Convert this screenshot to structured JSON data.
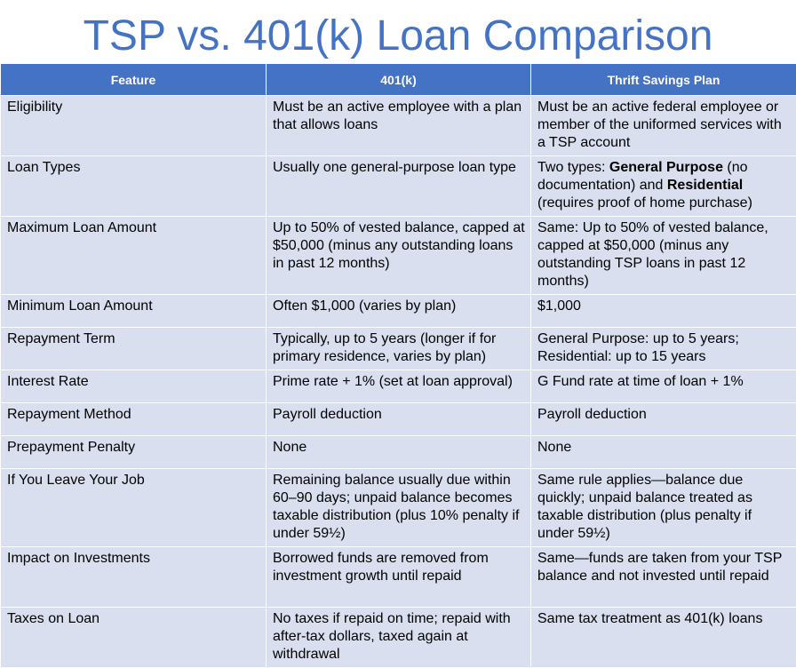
{
  "title": "TSP vs. 401(k) Loan Comparison",
  "columns": [
    "Feature",
    "401(k)",
    "Thrift Savings Plan"
  ],
  "rows": [
    {
      "feature": "Eligibility",
      "k401": "Must be an active employee with a plan that allows loans",
      "tsp": "Must be an active federal employee or member of the uniformed services with a TSP account"
    },
    {
      "feature": "Loan Types",
      "k401": "Usually one general-purpose loan type",
      "tsp_parts": [
        "Two types: ",
        "General Purpose",
        " (no documentation) and ",
        "Residential",
        " (requires proof of home purchase)"
      ]
    },
    {
      "feature": "Maximum Loan Amount",
      "k401": "Up to 50% of vested balance, capped at $50,000 (minus any outstanding loans in past 12 months)",
      "tsp": "Same: Up to 50% of vested balance, capped at $50,000 (minus any outstanding TSP loans in past 12 months)"
    },
    {
      "feature": "Minimum Loan Amount",
      "k401": "Often $1,000 (varies by plan)",
      "tsp": "$1,000"
    },
    {
      "feature": "Repayment Term",
      "k401": "Typically, up to 5 years (longer if for primary residence, varies by plan)",
      "tsp": "General Purpose: up to 5 years; Residential: up to 15 years"
    },
    {
      "feature": "Interest Rate",
      "k401": "Prime rate + 1% (set at loan approval)",
      "tsp": "G Fund rate at time of loan + 1%"
    },
    {
      "feature": "Repayment Method",
      "k401": "Payroll deduction",
      "tsp": "Payroll deduction"
    },
    {
      "feature": "Prepayment Penalty",
      "k401": "None",
      "tsp": "None"
    },
    {
      "feature": "If You Leave Your Job",
      "k401": "Remaining balance usually due within 60–90 days; unpaid balance becomes taxable distribution (plus 10% penalty if under 59½)",
      "tsp": "Same rule applies—balance due quickly; unpaid balance treated as taxable distribution (plus penalty if under 59½)"
    },
    {
      "feature": "Impact on Investments",
      "k401": "Borrowed funds are removed from investment growth until repaid",
      "tsp": "Same—funds are taken from your TSP balance and not invested until repaid"
    },
    {
      "feature": "Taxes on Loan",
      "k401": "No taxes if repaid on time; repaid with after-tax dollars, taxed again at withdrawal",
      "tsp": "Same tax treatment as 401(k) loans"
    }
  ],
  "colors": {
    "title": "#4472C4",
    "header_bg": "#4472C4",
    "cell_bg": "#D9DFEF"
  }
}
